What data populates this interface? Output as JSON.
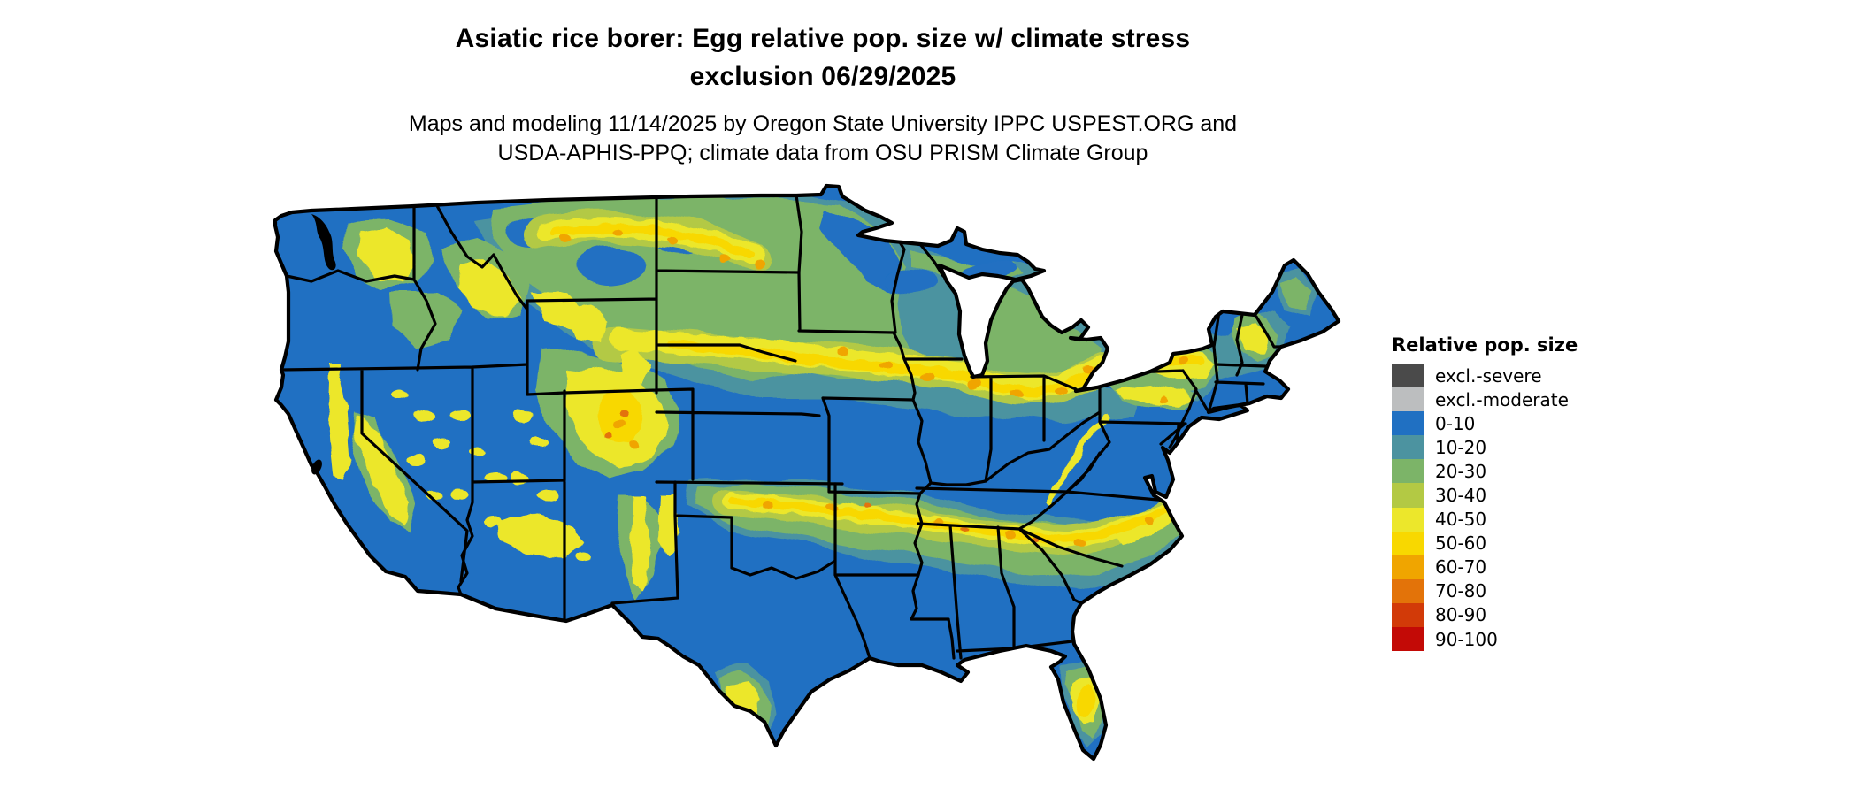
{
  "title": {
    "line1": "Asiatic rice borer: Egg relative pop. size w/ climate stress",
    "line2": "exclusion 06/29/2025"
  },
  "subtitle": {
    "line1": "Maps and modeling 11/14/2025 by Oregon State University IPPC USPEST.ORG and",
    "line2": "USDA-APHIS-PPQ; climate data from OSU PRISM Climate Group"
  },
  "legend": {
    "title": "Relative pop. size",
    "items": [
      {
        "label": "excl.-severe",
        "color": "#4a4a4a"
      },
      {
        "label": "excl.-moderate",
        "color": "#bcbebf"
      },
      {
        "label": "0-10",
        "color": "#2070c2"
      },
      {
        "label": "10-20",
        "color": "#4c93a0"
      },
      {
        "label": "20-30",
        "color": "#7cb468"
      },
      {
        "label": "30-40",
        "color": "#b3c944"
      },
      {
        "label": "40-50",
        "color": "#ece72b"
      },
      {
        "label": "50-60",
        "color": "#f8d800"
      },
      {
        "label": "60-70",
        "color": "#f0a500"
      },
      {
        "label": "70-80",
        "color": "#e37309"
      },
      {
        "label": "80-90",
        "color": "#d23a08"
      },
      {
        "label": "90-100",
        "color": "#c30a06"
      }
    ]
  },
  "palette": {
    "blue": "#2070c2",
    "teal": "#4c93a0",
    "green": "#7cb468",
    "yellowgreen": "#b3c944",
    "yellow": "#ece72b",
    "gold": "#f8d800",
    "orange": "#f0a500",
    "darkorange": "#e37309",
    "ink": "#000000",
    "water": "#ffffff"
  }
}
